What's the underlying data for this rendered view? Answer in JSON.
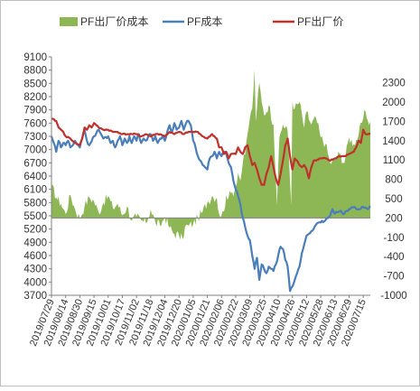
{
  "chart_data": {
    "type": "line",
    "title": "",
    "xlabel": "",
    "ylabel": "",
    "legend_position": "top",
    "grid": false,
    "y_left_lim": [
      3700,
      9100
    ],
    "y_left_ticks": [
      3700,
      4000,
      4300,
      4600,
      4900,
      5200,
      5500,
      5800,
      6100,
      6400,
      6700,
      7000,
      7300,
      7600,
      7900,
      8200,
      8500,
      8800,
      9100
    ],
    "y_right_lim": [
      -1000,
      2700
    ],
    "y_right_ticks": [
      -1000,
      -700,
      -400,
      -100,
      200,
      500,
      800,
      1100,
      1400,
      1700,
      2000,
      2300
    ],
    "x_tick_labels": [
      "2019/07/29",
      "2019/08/14",
      "2019/08/30",
      "2019/09/15",
      "2019/10/01",
      "2019/10/17",
      "2019/11/02",
      "2019/11/18",
      "2019/12/04",
      "2019/12/20",
      "2020/01/05",
      "2020/01/21",
      "2020/02/06",
      "2020/02/22",
      "2020/03/09",
      "2020/03/25",
      "2020/04/10",
      "2020/04/26",
      "2020/05/12",
      "2020/05/28",
      "2020/06/13",
      "2020/06/29",
      "2020/07/15"
    ],
    "x_tick_index": [
      0,
      12,
      24,
      36,
      48,
      60,
      72,
      84,
      96,
      108,
      120,
      132,
      144,
      156,
      168,
      180,
      192,
      204,
      216,
      228,
      240,
      252,
      264
    ],
    "n_points": 271,
    "series": [
      {
        "name": "PF出厂价成本",
        "kind": "area",
        "axis": "right",
        "color": "#8DB654",
        "keypoints": [
          [
            0,
            700
          ],
          [
            4,
            520
          ],
          [
            8,
            420
          ],
          [
            12,
            260
          ],
          [
            16,
            560
          ],
          [
            20,
            330
          ],
          [
            24,
            200
          ],
          [
            28,
            380
          ],
          [
            32,
            520
          ],
          [
            36,
            460
          ],
          [
            40,
            280
          ],
          [
            44,
            440
          ],
          [
            48,
            540
          ],
          [
            52,
            350
          ],
          [
            56,
            420
          ],
          [
            60,
            240
          ],
          [
            64,
            380
          ],
          [
            68,
            160
          ],
          [
            72,
            220
          ],
          [
            76,
            160
          ],
          [
            80,
            120
          ],
          [
            84,
            330
          ],
          [
            88,
            130
          ],
          [
            92,
            80
          ],
          [
            96,
            220
          ],
          [
            100,
            50
          ],
          [
            104,
            -50
          ],
          [
            108,
            -70
          ],
          [
            111,
            -130
          ],
          [
            113,
            60
          ],
          [
            116,
            80
          ],
          [
            120,
            110
          ],
          [
            124,
            200
          ],
          [
            128,
            300
          ],
          [
            132,
            440
          ],
          [
            136,
            540
          ],
          [
            140,
            510
          ],
          [
            142,
            260
          ],
          [
            144,
            240
          ],
          [
            146,
            300
          ],
          [
            148,
            560
          ],
          [
            150,
            520
          ],
          [
            152,
            580
          ],
          [
            155,
            620
          ],
          [
            158,
            900
          ],
          [
            160,
            780
          ],
          [
            162,
            1050
          ],
          [
            164,
            1180
          ],
          [
            166,
            1500
          ],
          [
            168,
            1750
          ],
          [
            170,
            1900
          ],
          [
            172,
            2500
          ],
          [
            173,
            1700
          ],
          [
            174,
            1900
          ],
          [
            176,
            2300
          ],
          [
            178,
            2000
          ],
          [
            180,
            1800
          ],
          [
            184,
            1950
          ],
          [
            188,
            1650
          ],
          [
            191,
            400
          ],
          [
            193,
            1450
          ],
          [
            196,
            1650
          ],
          [
            200,
            1550
          ],
          [
            203,
            400
          ],
          [
            204,
            2000
          ],
          [
            206,
            1900
          ],
          [
            210,
            2000
          ],
          [
            214,
            1600
          ],
          [
            216,
            1850
          ],
          [
            220,
            1650
          ],
          [
            224,
            1750
          ],
          [
            228,
            1450
          ],
          [
            232,
            1350
          ],
          [
            236,
            1050
          ],
          [
            240,
            1100
          ],
          [
            244,
            1200
          ],
          [
            248,
            1050
          ],
          [
            252,
            1450
          ],
          [
            256,
            1350
          ],
          [
            260,
            1480
          ],
          [
            264,
            1750
          ],
          [
            266,
            1850
          ],
          [
            268,
            1700
          ],
          [
            270,
            1700
          ]
        ]
      },
      {
        "name": "PF成本",
        "kind": "line",
        "axis": "left",
        "color": "#4A7EBB",
        "keypoints": [
          [
            0,
            7300
          ],
          [
            2,
            7150
          ],
          [
            4,
            6950
          ],
          [
            6,
            7200
          ],
          [
            8,
            7050
          ],
          [
            10,
            7150
          ],
          [
            12,
            7100
          ],
          [
            14,
            7200
          ],
          [
            16,
            7050
          ],
          [
            20,
            7200
          ],
          [
            24,
            7050
          ],
          [
            26,
            7250
          ],
          [
            28,
            7450
          ],
          [
            30,
            7200
          ],
          [
            32,
            7100
          ],
          [
            36,
            7300
          ],
          [
            40,
            7450
          ],
          [
            44,
            7250
          ],
          [
            48,
            7300
          ],
          [
            50,
            7150
          ],
          [
            52,
            7200
          ],
          [
            54,
            7050
          ],
          [
            56,
            7200
          ],
          [
            58,
            7300
          ],
          [
            60,
            7100
          ],
          [
            62,
            7250
          ],
          [
            64,
            7150
          ],
          [
            66,
            7300
          ],
          [
            68,
            7150
          ],
          [
            70,
            7300
          ],
          [
            72,
            7200
          ],
          [
            74,
            7350
          ],
          [
            76,
            7150
          ],
          [
            78,
            7250
          ],
          [
            80,
            7200
          ],
          [
            82,
            7300
          ],
          [
            84,
            7350
          ],
          [
            86,
            7200
          ],
          [
            88,
            7300
          ],
          [
            90,
            7150
          ],
          [
            92,
            7250
          ],
          [
            94,
            7300
          ],
          [
            96,
            7200
          ],
          [
            98,
            7400
          ],
          [
            100,
            7550
          ],
          [
            102,
            7400
          ],
          [
            104,
            7600
          ],
          [
            106,
            7450
          ],
          [
            108,
            7500
          ],
          [
            110,
            7650
          ],
          [
            112,
            7450
          ],
          [
            114,
            7600
          ],
          [
            116,
            7650
          ],
          [
            118,
            7550
          ],
          [
            120,
            7200
          ],
          [
            122,
            7050
          ],
          [
            124,
            6850
          ],
          [
            126,
            6750
          ],
          [
            128,
            6650
          ],
          [
            130,
            6600
          ],
          [
            132,
            6550
          ],
          [
            134,
            6800
          ],
          [
            136,
            6850
          ],
          [
            138,
            6950
          ],
          [
            140,
            6800
          ],
          [
            142,
            6950
          ],
          [
            144,
            6850
          ],
          [
            146,
            6950
          ],
          [
            148,
            6900
          ],
          [
            150,
            6700
          ],
          [
            152,
            6600
          ],
          [
            154,
            6300
          ],
          [
            156,
            6100
          ],
          [
            158,
            5950
          ],
          [
            160,
            5750
          ],
          [
            162,
            5450
          ],
          [
            164,
            5250
          ],
          [
            166,
            5050
          ],
          [
            168,
            4950
          ],
          [
            170,
            4600
          ],
          [
            172,
            4300
          ],
          [
            174,
            4550
          ],
          [
            176,
            4050
          ],
          [
            178,
            4400
          ],
          [
            180,
            4300
          ],
          [
            182,
            4200
          ],
          [
            184,
            4350
          ],
          [
            186,
            4300
          ],
          [
            188,
            4250
          ],
          [
            190,
            4400
          ],
          [
            192,
            4600
          ],
          [
            194,
            4800
          ],
          [
            196,
            4750
          ],
          [
            198,
            4500
          ],
          [
            200,
            4350
          ],
          [
            202,
            3800
          ],
          [
            204,
            3900
          ],
          [
            206,
            4050
          ],
          [
            208,
            4200
          ],
          [
            210,
            4350
          ],
          [
            212,
            4650
          ],
          [
            214,
            4850
          ],
          [
            216,
            5050
          ],
          [
            220,
            5150
          ],
          [
            224,
            5300
          ],
          [
            228,
            5350
          ],
          [
            232,
            5400
          ],
          [
            236,
            5500
          ],
          [
            238,
            5650
          ],
          [
            240,
            5550
          ],
          [
            244,
            5600
          ],
          [
            248,
            5550
          ],
          [
            252,
            5650
          ],
          [
            256,
            5700
          ],
          [
            260,
            5650
          ],
          [
            264,
            5700
          ],
          [
            268,
            5650
          ],
          [
            270,
            5720
          ]
        ]
      },
      {
        "name": "PF出厂价",
        "kind": "line",
        "axis": "left",
        "color": "#C0312B",
        "keypoints": [
          [
            0,
            7700
          ],
          [
            4,
            7650
          ],
          [
            6,
            7500
          ],
          [
            8,
            7450
          ],
          [
            10,
            7400
          ],
          [
            12,
            7300
          ],
          [
            16,
            7250
          ],
          [
            20,
            7150
          ],
          [
            24,
            7100
          ],
          [
            26,
            7250
          ],
          [
            28,
            7500
          ],
          [
            30,
            7450
          ],
          [
            32,
            7550
          ],
          [
            34,
            7500
          ],
          [
            36,
            7600
          ],
          [
            38,
            7550
          ],
          [
            40,
            7500
          ],
          [
            44,
            7450
          ],
          [
            48,
            7450
          ],
          [
            52,
            7400
          ],
          [
            56,
            7400
          ],
          [
            60,
            7350
          ],
          [
            64,
            7350
          ],
          [
            68,
            7350
          ],
          [
            72,
            7350
          ],
          [
            76,
            7300
          ],
          [
            80,
            7350
          ],
          [
            84,
            7300
          ],
          [
            88,
            7350
          ],
          [
            92,
            7350
          ],
          [
            96,
            7300
          ],
          [
            100,
            7400
          ],
          [
            104,
            7350
          ],
          [
            108,
            7400
          ],
          [
            112,
            7350
          ],
          [
            116,
            7400
          ],
          [
            120,
            7400
          ],
          [
            124,
            7400
          ],
          [
            126,
            7350
          ],
          [
            128,
            7300
          ],
          [
            132,
            7250
          ],
          [
            136,
            7350
          ],
          [
            140,
            7250
          ],
          [
            142,
            7050
          ],
          [
            144,
            7050
          ],
          [
            146,
            6900
          ],
          [
            148,
            6950
          ],
          [
            150,
            6800
          ],
          [
            152,
            6900
          ],
          [
            156,
            6900
          ],
          [
            158,
            7050
          ],
          [
            160,
            6950
          ],
          [
            162,
            6900
          ],
          [
            164,
            7050
          ],
          [
            166,
            7100
          ],
          [
            168,
            6850
          ],
          [
            170,
            6650
          ],
          [
            172,
            6700
          ],
          [
            174,
            6550
          ],
          [
            176,
            6350
          ],
          [
            178,
            6200
          ],
          [
            180,
            6200
          ],
          [
            182,
            6450
          ],
          [
            184,
            6600
          ],
          [
            186,
            6850
          ],
          [
            188,
            6600
          ],
          [
            190,
            6350
          ],
          [
            192,
            6200
          ],
          [
            194,
            6450
          ],
          [
            196,
            6750
          ],
          [
            198,
            7100
          ],
          [
            200,
            7250
          ],
          [
            202,
            6850
          ],
          [
            204,
            6550
          ],
          [
            206,
            6800
          ],
          [
            208,
            6750
          ],
          [
            210,
            6650
          ],
          [
            212,
            6600
          ],
          [
            214,
            6650
          ],
          [
            216,
            6550
          ],
          [
            218,
            6350
          ],
          [
            220,
            6600
          ],
          [
            222,
            6750
          ],
          [
            224,
            6750
          ],
          [
            228,
            6800
          ],
          [
            232,
            6800
          ],
          [
            236,
            6750
          ],
          [
            240,
            6800
          ],
          [
            244,
            6850
          ],
          [
            248,
            6850
          ],
          [
            252,
            6900
          ],
          [
            256,
            6950
          ],
          [
            258,
            7050
          ],
          [
            260,
            7200
          ],
          [
            262,
            7150
          ],
          [
            264,
            7450
          ],
          [
            266,
            7350
          ],
          [
            268,
            7350
          ],
          [
            270,
            7350
          ]
        ]
      }
    ]
  }
}
